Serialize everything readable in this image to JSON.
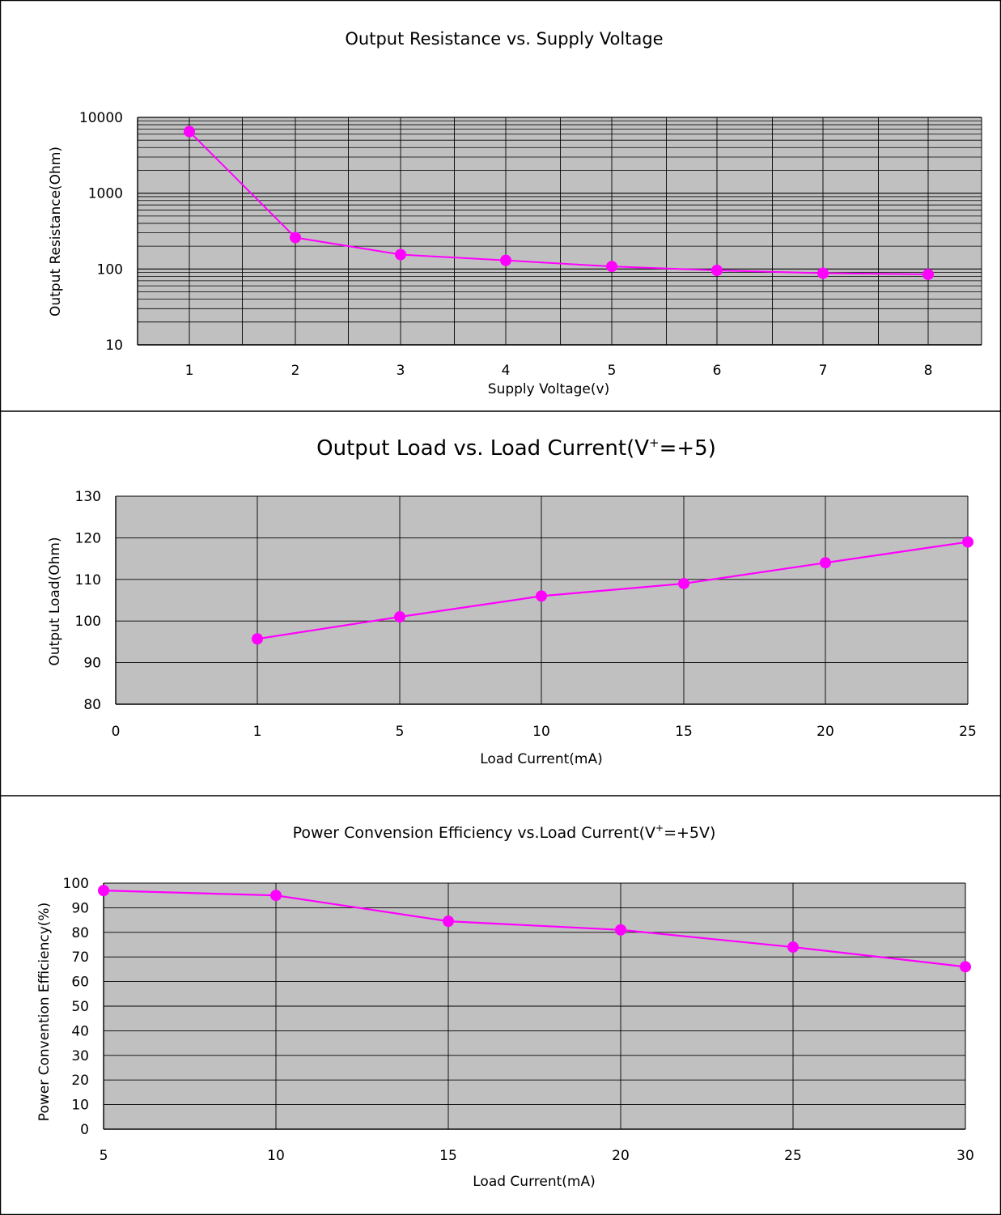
{
  "colors": {
    "plot_bg": "#c0c0c0",
    "series": "#ff00ff",
    "grid": "#000000",
    "page": "#ffffff"
  },
  "chart_data": [
    {
      "type": "line",
      "title": "Output Resistance vs. Supply Voltage",
      "xlabel": "Supply Voltage(v)",
      "ylabel": "Output Resistance(Ohm)",
      "y_scale": "log",
      "ylim": [
        10,
        10000
      ],
      "y_ticks": [
        "10",
        "100",
        "1000",
        "10000"
      ],
      "x_categories": [
        "1",
        "2",
        "3",
        "4",
        "5",
        "6",
        "7",
        "8"
      ],
      "grid": true,
      "series": [
        {
          "values": [
            6500,
            260,
            155,
            130,
            108,
            96,
            88,
            85
          ]
        }
      ]
    },
    {
      "type": "line",
      "title_main": "Output Load vs. Load Current(V",
      "title_sup": "+",
      "title_tail": "=+5)",
      "xlabel": "Load Current(mA)",
      "ylabel": "Output Load(Ohm)",
      "ylim": [
        80,
        130
      ],
      "y_ticks": [
        "80",
        "90",
        "100",
        "110",
        "120",
        "130"
      ],
      "x_categories": [
        "0",
        "1",
        "5",
        "10",
        "15",
        "20",
        "25"
      ],
      "grid": true,
      "series": [
        {
          "x": [
            "1",
            "5",
            "10",
            "15",
            "20",
            "25"
          ],
          "values": [
            95.7,
            101,
            106,
            109,
            114,
            119
          ]
        }
      ]
    },
    {
      "type": "line",
      "title_main": "Power Convension Efficiency vs.Load Current(V",
      "title_sup": "+",
      "title_tail": "=+5V)",
      "xlabel": "Load Current(mA)",
      "ylabel": "Power Convention Efficiency(%)",
      "ylim": [
        0,
        100
      ],
      "y_ticks": [
        "0",
        "10",
        "20",
        "30",
        "40",
        "50",
        "60",
        "70",
        "80",
        "90",
        "100"
      ],
      "x_categories": [
        "5",
        "10",
        "15",
        "20",
        "25",
        "30"
      ],
      "grid": true,
      "series": [
        {
          "x": [
            "5",
            "10",
            "15",
            "20",
            "25",
            "30"
          ],
          "values": [
            97,
            95,
            84.5,
            81,
            74,
            66
          ]
        }
      ]
    }
  ]
}
